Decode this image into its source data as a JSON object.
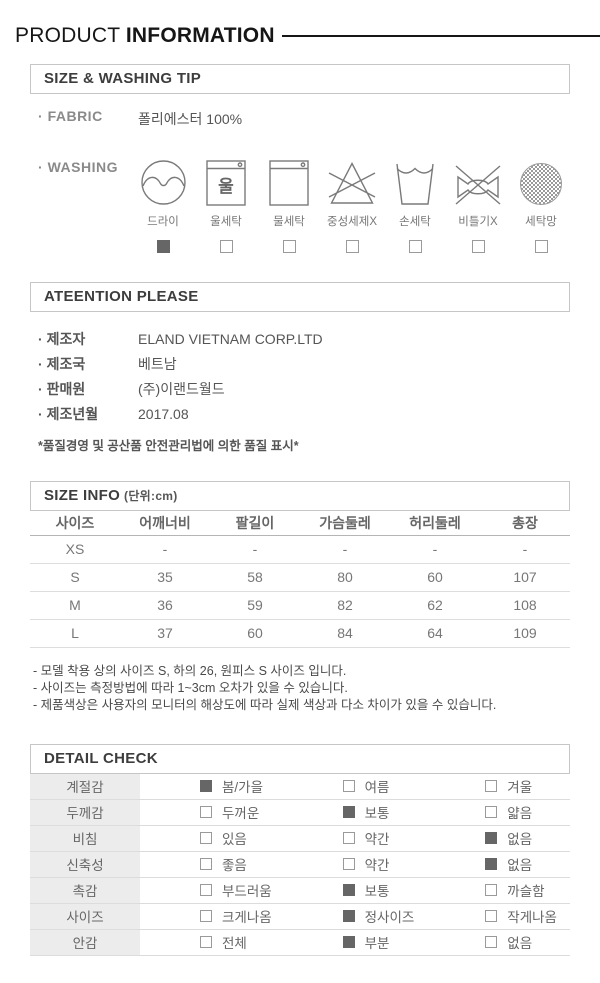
{
  "title": {
    "regular": "PRODUCT ",
    "bold": "INFORMATION"
  },
  "size_washing": {
    "header": "SIZE & WASHING TIP",
    "fabric_label": "FABRIC",
    "fabric_value": "폴리에스터 100%",
    "washing_label": "WASHING",
    "washing_items": [
      {
        "label": "드라이",
        "icon": "dry-clean-icon",
        "checked": true
      },
      {
        "label": "울세탁",
        "icon": "wool-wash-icon",
        "checked": false
      },
      {
        "label": "물세탁",
        "icon": "machine-wash-icon",
        "checked": false
      },
      {
        "label": "중성세제X",
        "icon": "no-neutral-detergent-icon",
        "checked": false
      },
      {
        "label": "손세탁",
        "icon": "hand-wash-icon",
        "checked": false
      },
      {
        "label": "비틀기X",
        "icon": "no-wring-icon",
        "checked": false
      },
      {
        "label": "세탁망",
        "icon": "laundry-net-icon",
        "checked": false
      }
    ]
  },
  "attention": {
    "header": "ATEENTION PLEASE",
    "rows": [
      {
        "label": "제조자",
        "value": "ELAND VIETNAM CORP.LTD"
      },
      {
        "label": "제조국",
        "value": "베트남"
      },
      {
        "label": "판매원",
        "value": "(주)이랜드월드"
      },
      {
        "label": "제조년월",
        "value": "2017.08"
      }
    ],
    "note": "*품질경영 및 공산품 안전관리법에 의한 품질 표시*"
  },
  "size_info": {
    "header": "SIZE INFO",
    "unit": "(단위:cm)",
    "columns": [
      "사이즈",
      "어깨너비",
      "팔길이",
      "가슴둘레",
      "허리둘레",
      "총장"
    ],
    "rows": [
      [
        "XS",
        "-",
        "-",
        "-",
        "-",
        "-"
      ],
      [
        "S",
        "35",
        "58",
        "80",
        "60",
        "107"
      ],
      [
        "M",
        "36",
        "59",
        "82",
        "62",
        "108"
      ],
      [
        "L",
        "37",
        "60",
        "84",
        "64",
        "109"
      ]
    ],
    "notes": [
      "- 모델 착용 상의 사이즈 S, 하의 26, 원피스 S 사이즈 입니다.",
      "- 사이즈는 측정방법에 따라 1~3cm 오차가 있을 수 있습니다.",
      "- 제품색상은 사용자의 모니터의 해상도에 따라 실제 색상과 다소 차이가 있을 수 있습니다."
    ]
  },
  "detail_check": {
    "header": "DETAIL CHECK",
    "rows": [
      {
        "label": "계절감",
        "options": [
          {
            "label": "봄/가을",
            "checked": true
          },
          {
            "label": "여름",
            "checked": false
          },
          {
            "label": "겨울",
            "checked": false
          }
        ]
      },
      {
        "label": "두께감",
        "options": [
          {
            "label": "두꺼운",
            "checked": false
          },
          {
            "label": "보통",
            "checked": true
          },
          {
            "label": "얇음",
            "checked": false
          }
        ]
      },
      {
        "label": "비침",
        "options": [
          {
            "label": "있음",
            "checked": false
          },
          {
            "label": "약간",
            "checked": false
          },
          {
            "label": "없음",
            "checked": true
          }
        ]
      },
      {
        "label": "신축성",
        "options": [
          {
            "label": "좋음",
            "checked": false
          },
          {
            "label": "약간",
            "checked": false
          },
          {
            "label": "없음",
            "checked": true
          }
        ]
      },
      {
        "label": "촉감",
        "options": [
          {
            "label": "부드러움",
            "checked": false
          },
          {
            "label": "보통",
            "checked": true
          },
          {
            "label": "까슬함",
            "checked": false
          }
        ]
      },
      {
        "label": "사이즈",
        "options": [
          {
            "label": "크게나옴",
            "checked": false
          },
          {
            "label": "정사이즈",
            "checked": true
          },
          {
            "label": "작게나옴",
            "checked": false
          }
        ]
      },
      {
        "label": "안감",
        "options": [
          {
            "label": "전체",
            "checked": false
          },
          {
            "label": "부분",
            "checked": true
          },
          {
            "label": "없음",
            "checked": false
          }
        ]
      }
    ]
  },
  "colors": {
    "checked_box": "#666666",
    "box_border": "#c6c6c6",
    "body_text": "#666666",
    "title_text": "#161616"
  }
}
